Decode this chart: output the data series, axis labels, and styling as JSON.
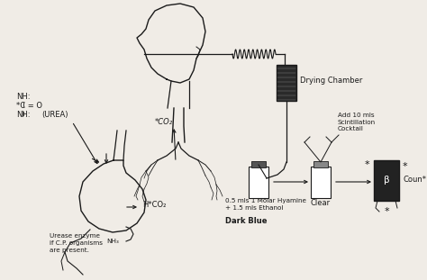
{
  "background_color": "#f0ece6",
  "text_color": "#1a1a1a",
  "line_color": "#1a1a1a",
  "labels": {
    "nh_line1": "NH:",
    "nh_line2": "*C = O",
    "nh_line3": "NH:",
    "urea": "(UREA)",
    "hco3": "H*CO₂",
    "nh3": "NH₃",
    "co2": "*CO₂",
    "urease": "Urease enzyme\nif C.P. organisms\nare present.",
    "drying_chamber": "Drying Chamber",
    "hyamine": "0.5 mls 1 Molar Hyamine\n+ 1.5 mls Ethanol",
    "dark_blue": "Dark Blue",
    "clear": "Clear",
    "scintillation": "Add 10 mls\nScintillation\nCocktail",
    "count": "Coun*"
  },
  "fig_width": 4.74,
  "fig_height": 3.11,
  "dpi": 100
}
